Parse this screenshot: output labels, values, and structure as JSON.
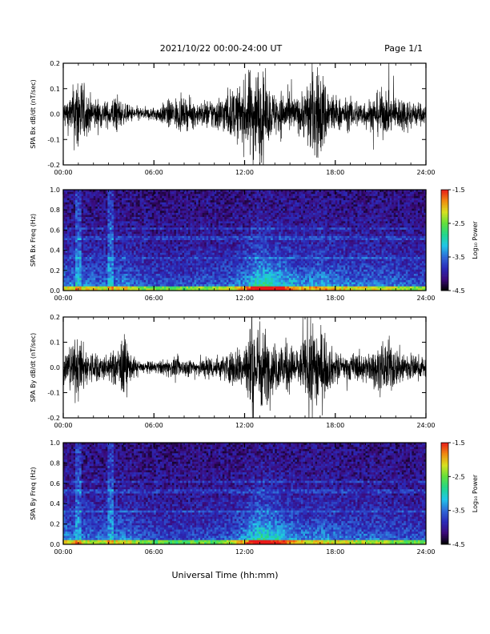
{
  "header": {
    "title": "2021/10/22  00:00-24:00 UT",
    "page": "Page 1/1"
  },
  "footer": {
    "xlabel": "Universal Time (hh:mm)"
  },
  "colors": {
    "trace": "#000000",
    "colormap": [
      "#000000",
      "#3b0a7a",
      "#2a2ab8",
      "#2f6bd8",
      "#20c6e8",
      "#22d68a",
      "#62e03a",
      "#d8e020",
      "#f08a10",
      "#e81818"
    ]
  },
  "chart_data": [
    {
      "type": "line",
      "id": "bx-waveform",
      "ylabel": "SPA Bx dB/dt (nT/sec)",
      "ylim": [
        -0.2,
        0.2
      ],
      "yticks": [
        "0.2",
        "0.1",
        "0.0",
        "-0.1",
        "-0.2"
      ],
      "x_ticks": [
        "00:00",
        "06:00",
        "12:00",
        "18:00",
        "24:00"
      ],
      "xlim_hours": [
        0,
        24
      ],
      "series": [
        {
          "x_hours": [
            0,
            0.5,
            1,
            1.5,
            2,
            2.5,
            3,
            3.5,
            4,
            4.5,
            5,
            5.5,
            6,
            6.5,
            7,
            7.5,
            8,
            8.5,
            9,
            9.5,
            10,
            10.5,
            11,
            11.5,
            12,
            12.5,
            13,
            13.5,
            14,
            14.5,
            15,
            15.5,
            16,
            16.5,
            17,
            17.5,
            18,
            18.5,
            19,
            19.5,
            20,
            20.5,
            21,
            21.5,
            22,
            22.5,
            23,
            23.5,
            24
          ],
          "amplitude": [
            0.06,
            0.08,
            0.2,
            0.09,
            0.07,
            0.06,
            0.05,
            0.09,
            0.04,
            0.035,
            0.03,
            0.025,
            0.03,
            0.04,
            0.06,
            0.07,
            0.06,
            0.06,
            0.05,
            0.06,
            0.07,
            0.08,
            0.1,
            0.11,
            0.14,
            0.2,
            0.2,
            0.12,
            0.09,
            0.1,
            0.08,
            0.07,
            0.11,
            0.2,
            0.2,
            0.12,
            0.08,
            0.06,
            0.07,
            0.06,
            0.06,
            0.07,
            0.1,
            0.08,
            0.07,
            0.08,
            0.06,
            0.05,
            0.04
          ]
        }
      ]
    },
    {
      "type": "heatmap",
      "id": "bx-spectrogram",
      "ylabel": "SPA Bx Freq (Hz)",
      "ylim": [
        0,
        1
      ],
      "yticks": [
        "1.0",
        "0.8",
        "0.6",
        "0.4",
        "0.2",
        "0.0"
      ],
      "x_ticks": [
        "00:00",
        "06:00",
        "12:00",
        "18:00",
        "24:00"
      ],
      "xlim_hours": [
        0,
        24
      ],
      "colorbar": {
        "label": "Log₁₀ Power",
        "range": [
          -4.5,
          -1.5
        ],
        "ticks": [
          "-1.5",
          "-2.5",
          "-3.5",
          "-4.5"
        ]
      },
      "activity_by_hour": [
        0.55,
        0.5,
        0.5,
        0.45,
        0.55,
        0.4,
        0.35,
        0.35,
        0.35,
        0.4,
        0.4,
        0.45,
        0.6,
        0.95,
        0.85,
        0.7,
        0.55,
        0.65,
        0.55,
        0.5,
        0.5,
        0.5,
        0.45,
        0.4,
        0.35
      ]
    },
    {
      "type": "line",
      "id": "by-waveform",
      "ylabel": "SPA By dB/dt (nT/sec)",
      "ylim": [
        -0.2,
        0.2
      ],
      "yticks": [
        "0.2",
        "0.1",
        "0.0",
        "-0.1",
        "-0.2"
      ],
      "x_ticks": [
        "00:00",
        "06:00",
        "12:00",
        "18:00",
        "24:00"
      ],
      "xlim_hours": [
        0,
        24
      ],
      "series": [
        {
          "x_hours": [
            0,
            0.5,
            1,
            1.5,
            2,
            2.5,
            3,
            3.5,
            4,
            4.5,
            5,
            5.5,
            6,
            6.5,
            7,
            7.5,
            8,
            8.5,
            9,
            9.5,
            10,
            10.5,
            11,
            11.5,
            12,
            12.5,
            13,
            13.5,
            14,
            14.5,
            15,
            15.5,
            16,
            16.5,
            17,
            17.5,
            18,
            18.5,
            19,
            19.5,
            20,
            20.5,
            21,
            21.5,
            22,
            22.5,
            23,
            23.5,
            24
          ],
          "amplitude": [
            0.06,
            0.1,
            0.13,
            0.08,
            0.07,
            0.06,
            0.05,
            0.08,
            0.14,
            0.05,
            0.03,
            0.025,
            0.025,
            0.03,
            0.04,
            0.04,
            0.035,
            0.04,
            0.04,
            0.05,
            0.05,
            0.05,
            0.07,
            0.08,
            0.12,
            0.2,
            0.2,
            0.14,
            0.1,
            0.12,
            0.1,
            0.08,
            0.12,
            0.2,
            0.18,
            0.1,
            0.07,
            0.05,
            0.06,
            0.06,
            0.06,
            0.07,
            0.1,
            0.12,
            0.08,
            0.08,
            0.06,
            0.05,
            0.045
          ]
        }
      ]
    },
    {
      "type": "heatmap",
      "id": "by-spectrogram",
      "ylabel": "SPA By Freq (Hz)",
      "ylim": [
        0,
        1
      ],
      "yticks": [
        "1.0",
        "0.8",
        "0.6",
        "0.4",
        "0.2",
        "0.0"
      ],
      "x_ticks": [
        "00:00",
        "06:00",
        "12:00",
        "18:00",
        "24:00"
      ],
      "xlim_hours": [
        0,
        24
      ],
      "colorbar": {
        "label": "Log₁₀ Power",
        "range": [
          -4.5,
          -1.5
        ],
        "ticks": [
          "-1.5",
          "-2.5",
          "-3.5",
          "-4.5"
        ]
      },
      "activity_by_hour": [
        0.55,
        0.5,
        0.45,
        0.45,
        0.55,
        0.4,
        0.35,
        0.3,
        0.3,
        0.35,
        0.35,
        0.4,
        0.6,
        0.95,
        0.8,
        0.65,
        0.5,
        0.55,
        0.5,
        0.45,
        0.45,
        0.45,
        0.4,
        0.35,
        0.35
      ]
    }
  ]
}
